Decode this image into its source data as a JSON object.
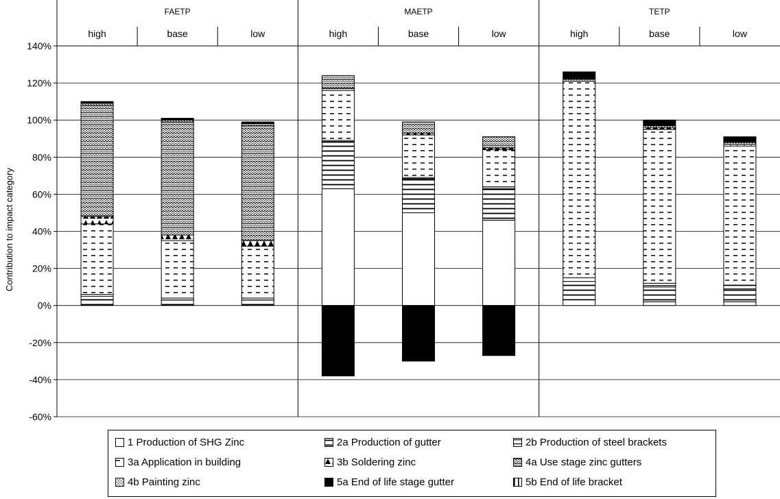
{
  "chart_data": {
    "type": "bar",
    "stacked": true,
    "ylabel": "Contribution to impact category",
    "ylim": [
      -60,
      140
    ],
    "yticks": [
      "-60%",
      "-40%",
      "-20%",
      "0%",
      "20%",
      "40%",
      "60%",
      "80%",
      "100%",
      "120%",
      "140%"
    ],
    "grid": true,
    "legend_position": "bottom",
    "groups": [
      {
        "name": "FAETP",
        "scenarios": [
          "high",
          "base",
          "low"
        ]
      },
      {
        "name": "MAETP",
        "scenarios": [
          "high",
          "base",
          "low"
        ]
      },
      {
        "name": "TETP",
        "scenarios": [
          "high",
          "base",
          "low"
        ]
      }
    ],
    "series": [
      {
        "key": "s1",
        "name": "1   Production of SHG Zinc",
        "values": [
          0,
          0,
          0,
          63,
          50,
          46,
          3,
          2,
          2
        ]
      },
      {
        "key": "s2a",
        "name": "2a Production of gutter",
        "values": [
          5,
          3,
          3,
          25,
          18,
          17,
          10,
          8,
          7
        ]
      },
      {
        "key": "s2b",
        "name": "2b Production of steel brackets",
        "values": [
          1,
          1,
          1,
          1,
          1,
          1,
          2,
          2,
          2
        ]
      },
      {
        "key": "s3a",
        "name": "3a Application in building",
        "values": [
          38,
          31,
          28,
          27,
          23,
          20,
          106,
          83,
          75
        ]
      },
      {
        "key": "s3b",
        "name": "3b Soldering zinc",
        "values": [
          4,
          3,
          3,
          1,
          1,
          1,
          0,
          1,
          1
        ]
      },
      {
        "key": "s4a",
        "name": "4a Use stage zinc gutters",
        "values": [
          60,
          61,
          62,
          7,
          6,
          6,
          0,
          0,
          0
        ]
      },
      {
        "key": "s4b",
        "name": "4b Painting zinc",
        "values": [
          1,
          1,
          1,
          0,
          0,
          0,
          1,
          1,
          1
        ]
      },
      {
        "key": "s5a",
        "name": "5a End of life stage gutter",
        "values": [
          1,
          1,
          1,
          -38,
          -30,
          -27,
          4,
          3,
          3
        ]
      },
      {
        "key": "s5b",
        "name": "5b End of life bracket",
        "values": [
          0,
          0,
          0,
          0,
          0,
          0,
          0,
          0,
          0
        ]
      }
    ]
  }
}
